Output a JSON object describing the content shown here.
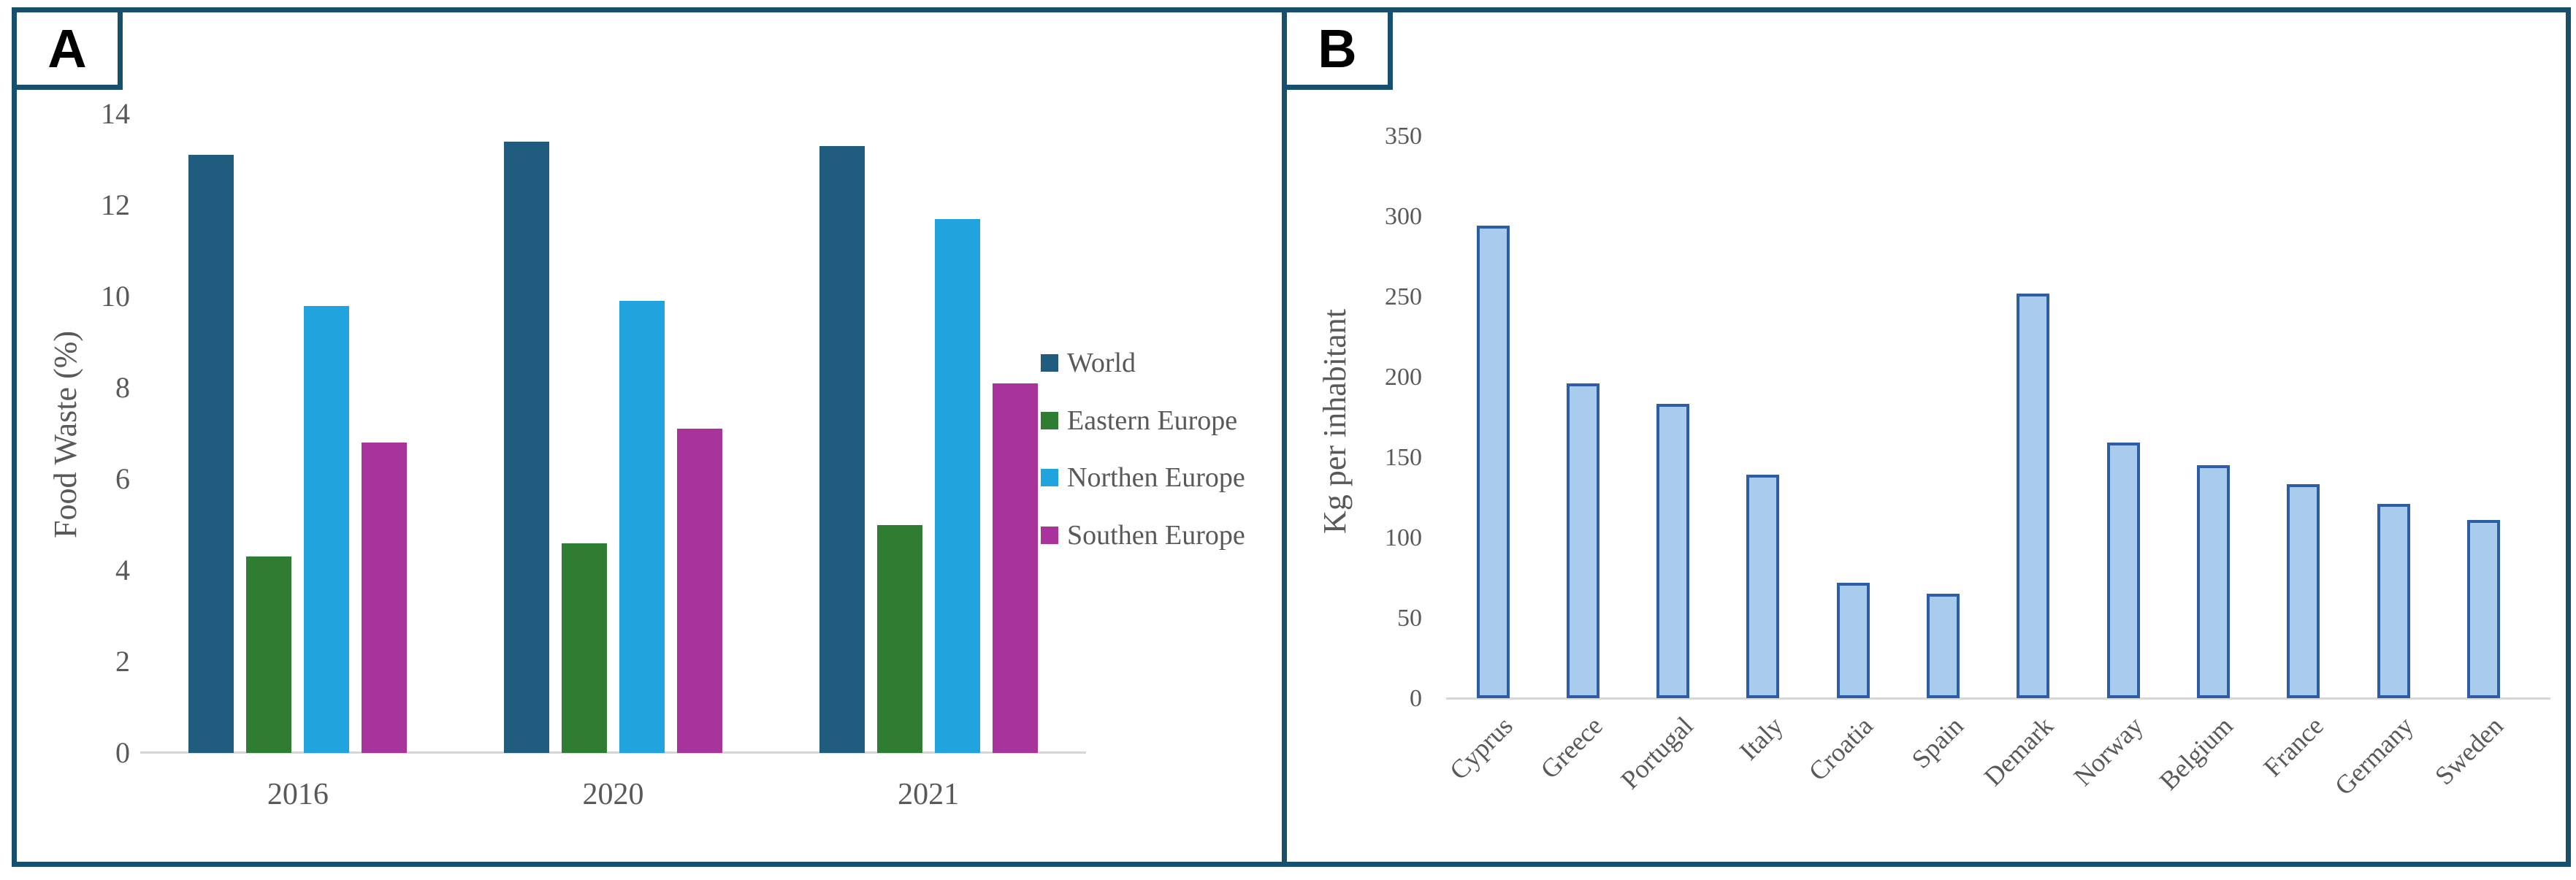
{
  "figure": {
    "panels": [
      {
        "label": "A"
      },
      {
        "label": "B"
      }
    ],
    "colors": {
      "frame": "#17506C",
      "text": "#595959",
      "axis_line": "#D6D6D6",
      "panel_label": "#000000"
    }
  },
  "chart_data": [
    {
      "type": "bar",
      "panel": "A",
      "title": "",
      "ylabel": "Food Waste (%)",
      "xlabel": "",
      "categories": [
        "2016",
        "2020",
        "2021"
      ],
      "series": [
        {
          "name": "World",
          "color": "#1F5C7D",
          "values": [
            13.1,
            13.4,
            13.3
          ]
        },
        {
          "name": "Eastern Europe",
          "color": "#2E7D32",
          "values": [
            4.3,
            4.6,
            5.0
          ]
        },
        {
          "name": "Northen Europe",
          "color": "#21A4DE",
          "values": [
            9.8,
            9.9,
            11.7
          ]
        },
        {
          "name": "Southen Europe",
          "color": "#A8339B",
          "values": [
            6.8,
            7.1,
            8.1
          ]
        }
      ],
      "ylim": [
        0,
        14
      ],
      "yticks": [
        0,
        2,
        4,
        6,
        8,
        10,
        12,
        14
      ],
      "legend_position": "right",
      "grid": false
    },
    {
      "type": "bar",
      "panel": "B",
      "title": "",
      "ylabel": "Kg per inhabitant",
      "xlabel": "",
      "categories": [
        "Cyprus",
        "Greece",
        "Portugal",
        "Italy",
        "Croatia",
        "Spain",
        "Demark",
        "Norway",
        "Belgium",
        "France",
        "Germany",
        "Sweden"
      ],
      "values": [
        294,
        196,
        183,
        139,
        72,
        65,
        252,
        159,
        145,
        133,
        121,
        111
      ],
      "bar_fill": "#A9CBEC",
      "bar_border": "#2C5DA6",
      "ylim": [
        0,
        350
      ],
      "yticks": [
        0,
        50,
        100,
        150,
        200,
        250,
        300,
        350
      ],
      "legend_position": "none",
      "grid": false,
      "x_tick_rotation": -45
    }
  ]
}
